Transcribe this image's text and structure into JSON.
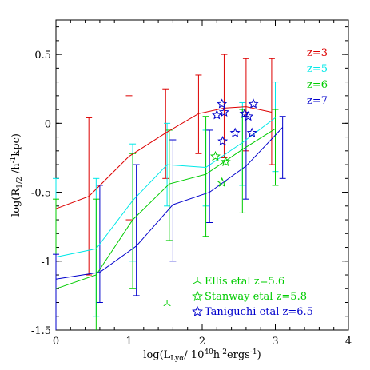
{
  "chart_data": {
    "type": "line",
    "xlabel": "log(L",
    "xlabel_sub": "Lyα",
    "xlabel_rest": "/ 10",
    "xlabel_sup": "40",
    "xlabel_end": "h",
    "xlabel_sup2": "-2",
    "xlabel_tail": "ergs",
    "xlabel_sup3": "-1",
    "xlabel_close": ")",
    "ylabel_pre": "log(R",
    "ylabel_sub": "1/2",
    "ylabel_mid": " /h",
    "ylabel_sup": "-1",
    "ylabel_end": "kpc)",
    "xlim": [
      0,
      4
    ],
    "ylim": [
      -1.5,
      0.75
    ],
    "xticks": [
      "0",
      "1",
      "2",
      "3",
      "4"
    ],
    "yticks": [
      "-1.5",
      "-1",
      "-0.5",
      "0",
      "0.5"
    ],
    "xtick_values": [
      0,
      1,
      2,
      3,
      4
    ],
    "ytick_values": [
      -1.5,
      -1,
      -0.5,
      0,
      0.5
    ],
    "series": [
      {
        "name": "z=3",
        "color": "#dd0000",
        "points": [
          {
            "x": 0.0,
            "y": -0.62,
            "lo": -0.62,
            "hi": -0.62
          },
          {
            "x": 0.45,
            "y": -0.53,
            "lo": -1.1,
            "hi": 0.04
          },
          {
            "x": 1.0,
            "y": -0.24,
            "lo": -0.7,
            "hi": 0.2
          },
          {
            "x": 1.5,
            "y": -0.07,
            "lo": -0.4,
            "hi": 0.25
          },
          {
            "x": 1.95,
            "y": 0.07,
            "lo": -0.22,
            "hi": 0.35
          },
          {
            "x": 2.3,
            "y": 0.11,
            "lo": -0.25,
            "hi": 0.5
          },
          {
            "x": 2.6,
            "y": 0.12,
            "lo": -0.2,
            "hi": 0.47
          },
          {
            "x": 2.95,
            "y": 0.08,
            "lo": -0.3,
            "hi": 0.47
          }
        ]
      },
      {
        "name": "z=5",
        "color": "#00e8e8",
        "points": [
          {
            "x": 0.0,
            "y": -0.97,
            "lo": -1.5,
            "hi": -0.4
          },
          {
            "x": 0.55,
            "y": -0.91,
            "lo": -1.4,
            "hi": -0.4
          },
          {
            "x": 1.05,
            "y": -0.56,
            "lo": -1.0,
            "hi": -0.15
          },
          {
            "x": 1.52,
            "y": -0.3,
            "lo": -0.6,
            "hi": 0.0
          },
          {
            "x": 2.05,
            "y": -0.32,
            "lo": -0.6,
            "hi": -0.05
          },
          {
            "x": 2.55,
            "y": -0.14,
            "lo": -0.45,
            "hi": 0.15
          },
          {
            "x": 3.0,
            "y": 0.04,
            "lo": -0.35,
            "hi": 0.3
          }
        ]
      },
      {
        "name": "z=6",
        "color": "#00cc00",
        "points": [
          {
            "x": 0.0,
            "y": -1.2,
            "lo": -1.5,
            "hi": -0.55
          },
          {
            "x": 0.55,
            "y": -1.1,
            "lo": -1.5,
            "hi": -0.55
          },
          {
            "x": 1.05,
            "y": -0.7,
            "lo": -1.2,
            "hi": -0.22
          },
          {
            "x": 1.55,
            "y": -0.44,
            "lo": -0.85,
            "hi": -0.05
          },
          {
            "x": 2.05,
            "y": -0.37,
            "lo": -0.82,
            "hi": 0.05
          },
          {
            "x": 2.55,
            "y": -0.19,
            "lo": -0.65,
            "hi": 0.1
          },
          {
            "x": 3.0,
            "y": -0.04,
            "lo": -0.45,
            "hi": 0.1
          }
        ]
      },
      {
        "name": "z=7",
        "color": "#0000cc",
        "points": [
          {
            "x": 0.0,
            "y": -1.13,
            "lo": -1.5,
            "hi": -0.95
          },
          {
            "x": 0.6,
            "y": -1.08,
            "lo": -1.3,
            "hi": -0.45
          },
          {
            "x": 1.1,
            "y": -0.89,
            "lo": -1.25,
            "hi": -0.3
          },
          {
            "x": 1.6,
            "y": -0.59,
            "lo": -1.0,
            "hi": -0.12
          },
          {
            "x": 2.1,
            "y": -0.5,
            "lo": -0.72,
            "hi": -0.05
          },
          {
            "x": 2.6,
            "y": -0.31,
            "lo": -0.55,
            "hi": 0.05
          },
          {
            "x": 3.1,
            "y": -0.03,
            "lo": -0.4,
            "hi": 0.05
          }
        ]
      }
    ],
    "observations": [
      {
        "name": "Ellis etal z=5.6",
        "color": "#00cc00",
        "marker": "tri",
        "points": [
          {
            "x": 1.52,
            "y": -1.31
          }
        ]
      },
      {
        "name": "Stanway etal z=5.8",
        "color": "#00cc00",
        "marker": "star",
        "points": [
          {
            "x": 2.18,
            "y": -0.24
          },
          {
            "x": 2.27,
            "y": -0.43
          },
          {
            "x": 2.32,
            "y": -0.28
          }
        ]
      },
      {
        "name": "Taniguchi etal z=6.5",
        "color": "#0000cc",
        "marker": "star",
        "points": [
          {
            "x": 2.2,
            "y": 0.06
          },
          {
            "x": 2.27,
            "y": 0.14
          },
          {
            "x": 2.3,
            "y": 0.08
          },
          {
            "x": 2.45,
            "y": -0.07
          },
          {
            "x": 2.58,
            "y": 0.07
          },
          {
            "x": 2.63,
            "y": 0.05
          },
          {
            "x": 2.68,
            "y": -0.07
          },
          {
            "x": 2.7,
            "y": 0.14
          },
          {
            "x": 2.28,
            "y": -0.13
          }
        ]
      }
    ],
    "legend_placement": "top-right",
    "marker_legend_placement": "bottom-right"
  }
}
